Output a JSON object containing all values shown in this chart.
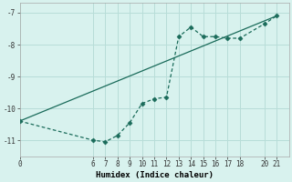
{
  "xlabel": "Humidex (Indice chaleur)",
  "background_color": "#d8f2ee",
  "grid_color": "#b8ddd8",
  "line1_color": "#1a6b5a",
  "line2_color": "#1a6b5a",
  "line1_x": [
    0,
    6,
    7,
    8,
    9,
    10,
    11,
    12,
    13,
    14,
    15,
    16,
    17,
    18,
    20,
    21
  ],
  "line1_y": [
    -10.4,
    -11.0,
    -11.05,
    -10.85,
    -10.45,
    -9.85,
    -9.7,
    -9.65,
    -7.75,
    -7.45,
    -7.75,
    -7.75,
    -7.8,
    -7.8,
    -7.35,
    -7.1
  ],
  "line2_x": [
    0,
    21
  ],
  "line2_y": [
    -10.4,
    -7.1
  ],
  "xlim": [
    0,
    22
  ],
  "ylim": [
    -11.5,
    -6.7
  ],
  "yticks": [
    -11,
    -10,
    -9,
    -8,
    -7
  ],
  "xticks": [
    0,
    6,
    7,
    8,
    9,
    10,
    11,
    12,
    13,
    14,
    15,
    16,
    17,
    18,
    20,
    21
  ],
  "xtick_labels": [
    "0",
    "6",
    "7",
    "8",
    "9",
    "10",
    "11",
    "12",
    "13",
    "14",
    "15",
    "16",
    "17",
    "18",
    "20",
    "21"
  ],
  "figsize": [
    3.2,
    2.0
  ],
  "dpi": 100
}
